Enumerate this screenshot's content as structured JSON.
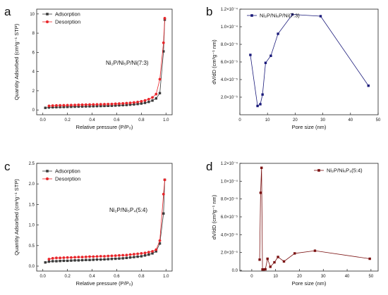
{
  "chart_data": [
    {
      "panel": "a",
      "type": "line",
      "ylabel": "Quantity Adsorbed (cm³g⁻¹ STP)",
      "xlabel": "Relative pressure (P/P₀)",
      "xlim": [
        -0.05,
        1.05
      ],
      "ylim": [
        -0.5,
        10.5
      ],
      "xticks": [
        "0.0",
        "0.2",
        "0.4",
        "0.6",
        "0.8",
        "1.0"
      ],
      "xtick_values": [
        0.0,
        0.2,
        0.4,
        0.6,
        0.8,
        1.0
      ],
      "yticks": [
        "0",
        "2",
        "4",
        "6",
        "8",
        "10"
      ],
      "ytick_values": [
        0,
        2,
        4,
        6,
        8,
        10
      ],
      "annotation": "Ni₂P/Ni₅P/Ni(7:3)",
      "legend_position": "top-left",
      "series": [
        {
          "name": "Adsorption",
          "color": "#3a3a3a",
          "marker": "square",
          "x": [
            0.02,
            0.05,
            0.08,
            0.11,
            0.14,
            0.17,
            0.2,
            0.23,
            0.26,
            0.29,
            0.32,
            0.35,
            0.38,
            0.41,
            0.44,
            0.47,
            0.5,
            0.53,
            0.56,
            0.59,
            0.62,
            0.65,
            0.68,
            0.71,
            0.74,
            0.77,
            0.8,
            0.83,
            0.86,
            0.89,
            0.92,
            0.95,
            0.98,
            0.99
          ],
          "y": [
            0.22,
            0.26,
            0.28,
            0.29,
            0.3,
            0.31,
            0.32,
            0.33,
            0.34,
            0.35,
            0.36,
            0.37,
            0.38,
            0.39,
            0.4,
            0.41,
            0.42,
            0.43,
            0.44,
            0.46,
            0.48,
            0.5,
            0.52,
            0.55,
            0.58,
            0.62,
            0.67,
            0.74,
            0.84,
            0.98,
            1.2,
            1.75,
            6.1,
            9.4
          ]
        },
        {
          "name": "Desorption",
          "color": "#e8262b",
          "marker": "circle",
          "x": [
            0.05,
            0.08,
            0.11,
            0.14,
            0.17,
            0.2,
            0.23,
            0.26,
            0.29,
            0.32,
            0.35,
            0.38,
            0.41,
            0.44,
            0.47,
            0.5,
            0.53,
            0.56,
            0.59,
            0.62,
            0.65,
            0.68,
            0.71,
            0.74,
            0.77,
            0.8,
            0.83,
            0.86,
            0.89,
            0.92,
            0.95,
            0.98,
            0.99
          ],
          "y": [
            0.42,
            0.45,
            0.47,
            0.48,
            0.49,
            0.5,
            0.51,
            0.52,
            0.53,
            0.54,
            0.55,
            0.56,
            0.57,
            0.58,
            0.59,
            0.6,
            0.61,
            0.62,
            0.64,
            0.66,
            0.68,
            0.71,
            0.74,
            0.78,
            0.83,
            0.9,
            0.99,
            1.12,
            1.3,
            1.65,
            3.2,
            7.0,
            9.55
          ]
        }
      ]
    },
    {
      "panel": "b",
      "type": "line",
      "ylabel": "dV/dD (cm³g⁻¹ nm)",
      "xlabel": "Pore size (nm)",
      "xlim": [
        0,
        50
      ],
      "ylim": [
        0,
        0.00012
      ],
      "xticks": [
        "0",
        "10",
        "20",
        "30",
        "40",
        "50"
      ],
      "xtick_values": [
        0,
        10,
        20,
        30,
        40,
        50
      ],
      "yticks": [
        "2.0×10⁻⁵",
        "4.0×10⁻⁵",
        "6.0×10⁻⁵",
        "8.0×10⁻⁵",
        "1.0×10⁻⁴",
        "1.2×10⁻⁴"
      ],
      "ytick_values": [
        2e-05,
        4e-05,
        6e-05,
        8e-05,
        0.0001,
        0.00012
      ],
      "legend_position": "top-left",
      "series": [
        {
          "name": "Ni₂P/Ni₅P/Ni(7:3)",
          "color": "#1a1a7a",
          "marker": "square",
          "x": [
            3.8,
            6.4,
            7.4,
            8.2,
            9.3,
            11.2,
            13.8,
            19.0,
            29.2,
            46.5
          ],
          "y": [
            6.8e-05,
            1e-05,
            1.2e-05,
            2.3e-05,
            5.9e-05,
            6.7e-05,
            9.2e-05,
            0.000114,
            0.000112,
            3.3e-05
          ]
        }
      ]
    },
    {
      "panel": "c",
      "type": "line",
      "ylabel": "Quantity Adsorbed (cm³g⁻¹ STP)",
      "xlabel": "Relative pressure (P/P₀)",
      "xlim": [
        -0.05,
        1.05
      ],
      "ylim": [
        -0.12,
        2.5
      ],
      "xticks": [
        "0.0",
        "0.2",
        "0.4",
        "0.6",
        "0.8",
        "1.0"
      ],
      "xtick_values": [
        0.0,
        0.2,
        0.4,
        0.6,
        0.8,
        1.0
      ],
      "yticks": [
        "0.0",
        "0.5",
        "1.0",
        "1.5",
        "2.0",
        "2.5"
      ],
      "ytick_values": [
        0.0,
        0.5,
        1.0,
        1.5,
        2.0,
        2.5
      ],
      "annotation": "Ni₂P/Ni₅P₄(5:4)",
      "legend_position": "top-left",
      "series": [
        {
          "name": "Adsorption",
          "color": "#3a3a3a",
          "marker": "square",
          "x": [
            0.02,
            0.05,
            0.08,
            0.11,
            0.14,
            0.17,
            0.2,
            0.23,
            0.26,
            0.29,
            0.32,
            0.35,
            0.38,
            0.41,
            0.44,
            0.47,
            0.5,
            0.53,
            0.56,
            0.59,
            0.62,
            0.65,
            0.68,
            0.71,
            0.74,
            0.77,
            0.8,
            0.83,
            0.86,
            0.89,
            0.92,
            0.95,
            0.98,
            0.99
          ],
          "y": [
            0.09,
            0.11,
            0.12,
            0.12,
            0.125,
            0.13,
            0.13,
            0.135,
            0.14,
            0.14,
            0.145,
            0.15,
            0.15,
            0.155,
            0.16,
            0.16,
            0.165,
            0.17,
            0.175,
            0.18,
            0.185,
            0.19,
            0.2,
            0.21,
            0.22,
            0.23,
            0.24,
            0.26,
            0.28,
            0.31,
            0.36,
            0.55,
            1.28,
            2.1
          ]
        },
        {
          "name": "Desorption",
          "color": "#e8262b",
          "marker": "circle",
          "x": [
            0.05,
            0.08,
            0.11,
            0.14,
            0.17,
            0.2,
            0.23,
            0.26,
            0.29,
            0.32,
            0.35,
            0.38,
            0.41,
            0.44,
            0.47,
            0.5,
            0.53,
            0.56,
            0.59,
            0.62,
            0.65,
            0.68,
            0.71,
            0.74,
            0.77,
            0.8,
            0.83,
            0.86,
            0.89,
            0.92,
            0.95,
            0.98,
            0.99
          ],
          "y": [
            0.17,
            0.19,
            0.2,
            0.2,
            0.205,
            0.21,
            0.21,
            0.215,
            0.22,
            0.22,
            0.225,
            0.23,
            0.23,
            0.235,
            0.24,
            0.24,
            0.245,
            0.25,
            0.255,
            0.26,
            0.265,
            0.27,
            0.28,
            0.29,
            0.3,
            0.31,
            0.32,
            0.34,
            0.36,
            0.4,
            0.62,
            1.75,
            2.1
          ]
        }
      ]
    },
    {
      "panel": "d",
      "type": "line",
      "ylabel": "dV/dD (cm³g⁻¹ nm)",
      "xlabel": "Pore size (nm)",
      "xlim": [
        -5,
        53
      ],
      "ylim": [
        -8e-07,
        0.00012
      ],
      "xticks": [
        "0",
        "10",
        "20",
        "30",
        "40",
        "50"
      ],
      "xtick_values": [
        0,
        10,
        20,
        30,
        40,
        50
      ],
      "yticks": [
        "0.0",
        "2.0×10⁻⁵",
        "4.0×10⁻⁵",
        "6.0×10⁻⁵",
        "8.0×10⁻⁵",
        "1.0×10⁻⁴",
        "1.2×10⁻⁴"
      ],
      "ytick_values": [
        0,
        2e-05,
        4e-05,
        6e-05,
        8e-05,
        0.0001,
        0.00012
      ],
      "legend_position": "top-right",
      "series": [
        {
          "name": "Ni₂P/Ni₅P₄(5:4)",
          "color": "#7a1010",
          "marker": "square",
          "x": [
            3.3,
            3.7,
            4.1,
            4.5,
            5.0,
            5.7,
            6.6,
            7.8,
            9.5,
            11.0,
            13.5,
            18.0,
            26.5,
            49.5
          ],
          "y": [
            1.2e-05,
            8.7e-05,
            0.000115,
            1e-06,
            1e-06,
            1.2e-06,
            1.3e-05,
            4e-06,
            9e-06,
            1.5e-05,
            1e-05,
            1.9e-05,
            2.2e-05,
            1.3e-05
          ]
        }
      ]
    }
  ]
}
